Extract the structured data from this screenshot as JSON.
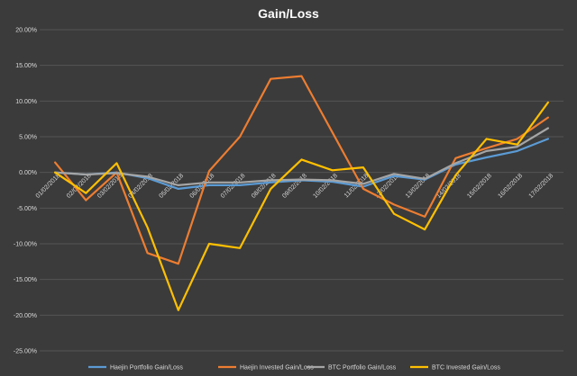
{
  "chart_data": {
    "type": "line",
    "title": "Gain/Loss",
    "xlabel": "",
    "ylabel": "",
    "ylim": [
      -25,
      20
    ],
    "yticks": [
      "20.00%",
      "15.00%",
      "10.00%",
      "5.00%",
      "0.00%",
      "-5.00%",
      "-10.00%",
      "-15.00%",
      "-20.00%",
      "-25.00%"
    ],
    "ytick_values": [
      20,
      15,
      10,
      5,
      0,
      -5,
      -10,
      -15,
      -20,
      -25
    ],
    "categories": [
      "01/02/2018",
      "02/02/2018",
      "03/02/2018",
      "04/02/2018",
      "05/02/2018",
      "06/02/2018",
      "07/02/2018",
      "08/02/2018",
      "09/02/2018",
      "10/02/2018",
      "11/02/2018",
      "12/02/2018",
      "13/02/2018",
      "14/02/2018",
      "15/02/2018",
      "16/02/2018",
      "17/02/2018"
    ],
    "grid": true,
    "legend_position": "bottom",
    "series": [
      {
        "name": "Haejin Portfolio Gain/Loss",
        "color": "#5b9bd5",
        "values": [
          0.0,
          -0.3,
          0.0,
          -0.8,
          -2.3,
          -1.8,
          -1.8,
          -1.4,
          -1.1,
          -1.3,
          -2.0,
          -0.5,
          -1.0,
          1.1,
          2.1,
          3.0,
          4.7
        ]
      },
      {
        "name": "Haejin Invested Gain/Loss",
        "color": "#ed7d31",
        "values": [
          1.4,
          -3.9,
          0.0,
          -11.3,
          -12.8,
          0.2,
          5.0,
          13.1,
          13.5,
          5.6,
          -2.3,
          -4.5,
          -6.2,
          2.0,
          3.4,
          4.7,
          7.7
        ]
      },
      {
        "name": "BTC Portfolio Gain/Loss",
        "color": "#a5a5a5",
        "values": [
          0.0,
          -0.3,
          -0.1,
          -0.6,
          -1.8,
          -1.4,
          -1.4,
          -1.1,
          -1.0,
          -1.1,
          -1.6,
          -0.2,
          -0.9,
          1.3,
          3.0,
          3.6,
          6.2
        ]
      },
      {
        "name": "BTC Invested Gain/Loss",
        "color": "#ffc000",
        "values": [
          0.0,
          -2.9,
          1.3,
          -7.7,
          -19.3,
          -10.0,
          -10.6,
          -2.3,
          1.8,
          0.3,
          0.7,
          -5.8,
          -8.0,
          -0.4,
          4.7,
          3.9,
          9.8
        ]
      }
    ]
  }
}
